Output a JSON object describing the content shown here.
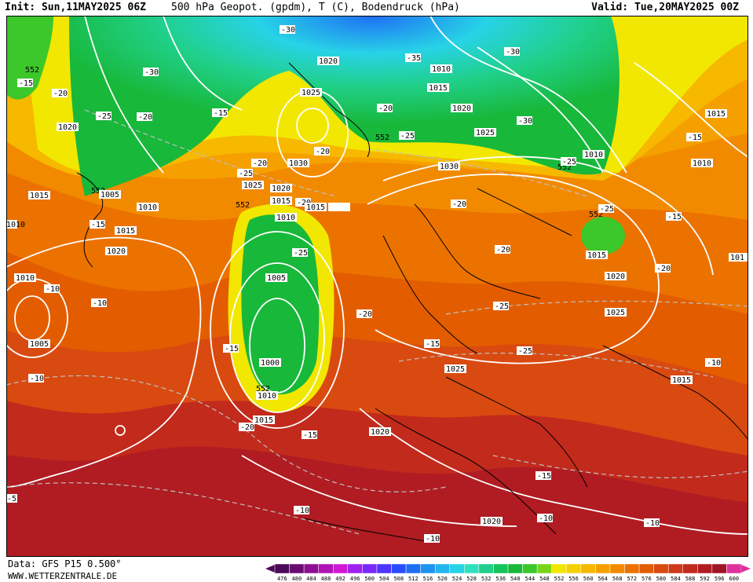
{
  "header": {
    "init": "Init: Sun,11MAY2025 06Z",
    "title": "500 hPa Geopot. (gpdm), T (C), Bodendruck (hPa)",
    "valid": "Valid: Tue,20MAY2025 00Z"
  },
  "footer": {
    "source": "Data: GFS P15 0.500°",
    "site": "WWW.WETTERZENTRALE.DE"
  },
  "legend": {
    "ticks": [
      "476",
      "480",
      "484",
      "488",
      "492",
      "496",
      "500",
      "504",
      "508",
      "512",
      "516",
      "520",
      "524",
      "528",
      "532",
      "536",
      "540",
      "544",
      "548",
      "552",
      "556",
      "560",
      "564",
      "568",
      "572",
      "576",
      "580",
      "584",
      "588",
      "592",
      "596",
      "600"
    ],
    "colors": [
      "#4b0a55",
      "#6a0b72",
      "#8e0f94",
      "#b013b4",
      "#cf18d4",
      "#a020f0",
      "#7a28ff",
      "#4d34ff",
      "#2a4cff",
      "#1e6ff5",
      "#1f93f0",
      "#22b5ee",
      "#27d3e6",
      "#2fe0c0",
      "#20d08a",
      "#14c35a",
      "#18b83a",
      "#3cc72a",
      "#7ad41c",
      "#f2e700",
      "#f5d000",
      "#f7b800",
      "#f6a000",
      "#f28a00",
      "#ec7200",
      "#e35d00",
      "#d94a10",
      "#cf3a18",
      "#c22a1c",
      "#b01c22",
      "#a01525",
      "#e030a0"
    ]
  },
  "map_labels": {
    "geopotential": [
      "552",
      "552",
      "552",
      "552",
      "552",
      "552",
      "552"
    ],
    "temperature": [
      "-15",
      "-20",
      "-25",
      "-20",
      "-30",
      "-30",
      "-35",
      "-30",
      "-30",
      "-25",
      "-25",
      "-25",
      "-20",
      "-20",
      "-15",
      "-20",
      "-25",
      "-20",
      "-25",
      "-20",
      "-20",
      "-20",
      "-15",
      "-25",
      "-20",
      "-20",
      "-25",
      "-25",
      "-20",
      "-20",
      "-15",
      "-15",
      "-15",
      "-10",
      "-10",
      "-10",
      "-15",
      "-15",
      "-10",
      "-10",
      "-15",
      "-15",
      "-10",
      "-10",
      "-10",
      "-5"
    ],
    "pressure": [
      "1020",
      "1015",
      "1005",
      "1010",
      "1015",
      "1020",
      "1010",
      "1005",
      "1020",
      "1025",
      "1030",
      "1025",
      "1020",
      "1015",
      "1010",
      "1005",
      "1000",
      "1010",
      "1015",
      "1010",
      "1015",
      "1020",
      "1025",
      "1030",
      "1010",
      "1010",
      "1015",
      "1020",
      "1025",
      "1015",
      "1015",
      "1010",
      "101",
      "1020",
      "1025",
      "1015",
      "1020",
      "1015"
    ]
  }
}
